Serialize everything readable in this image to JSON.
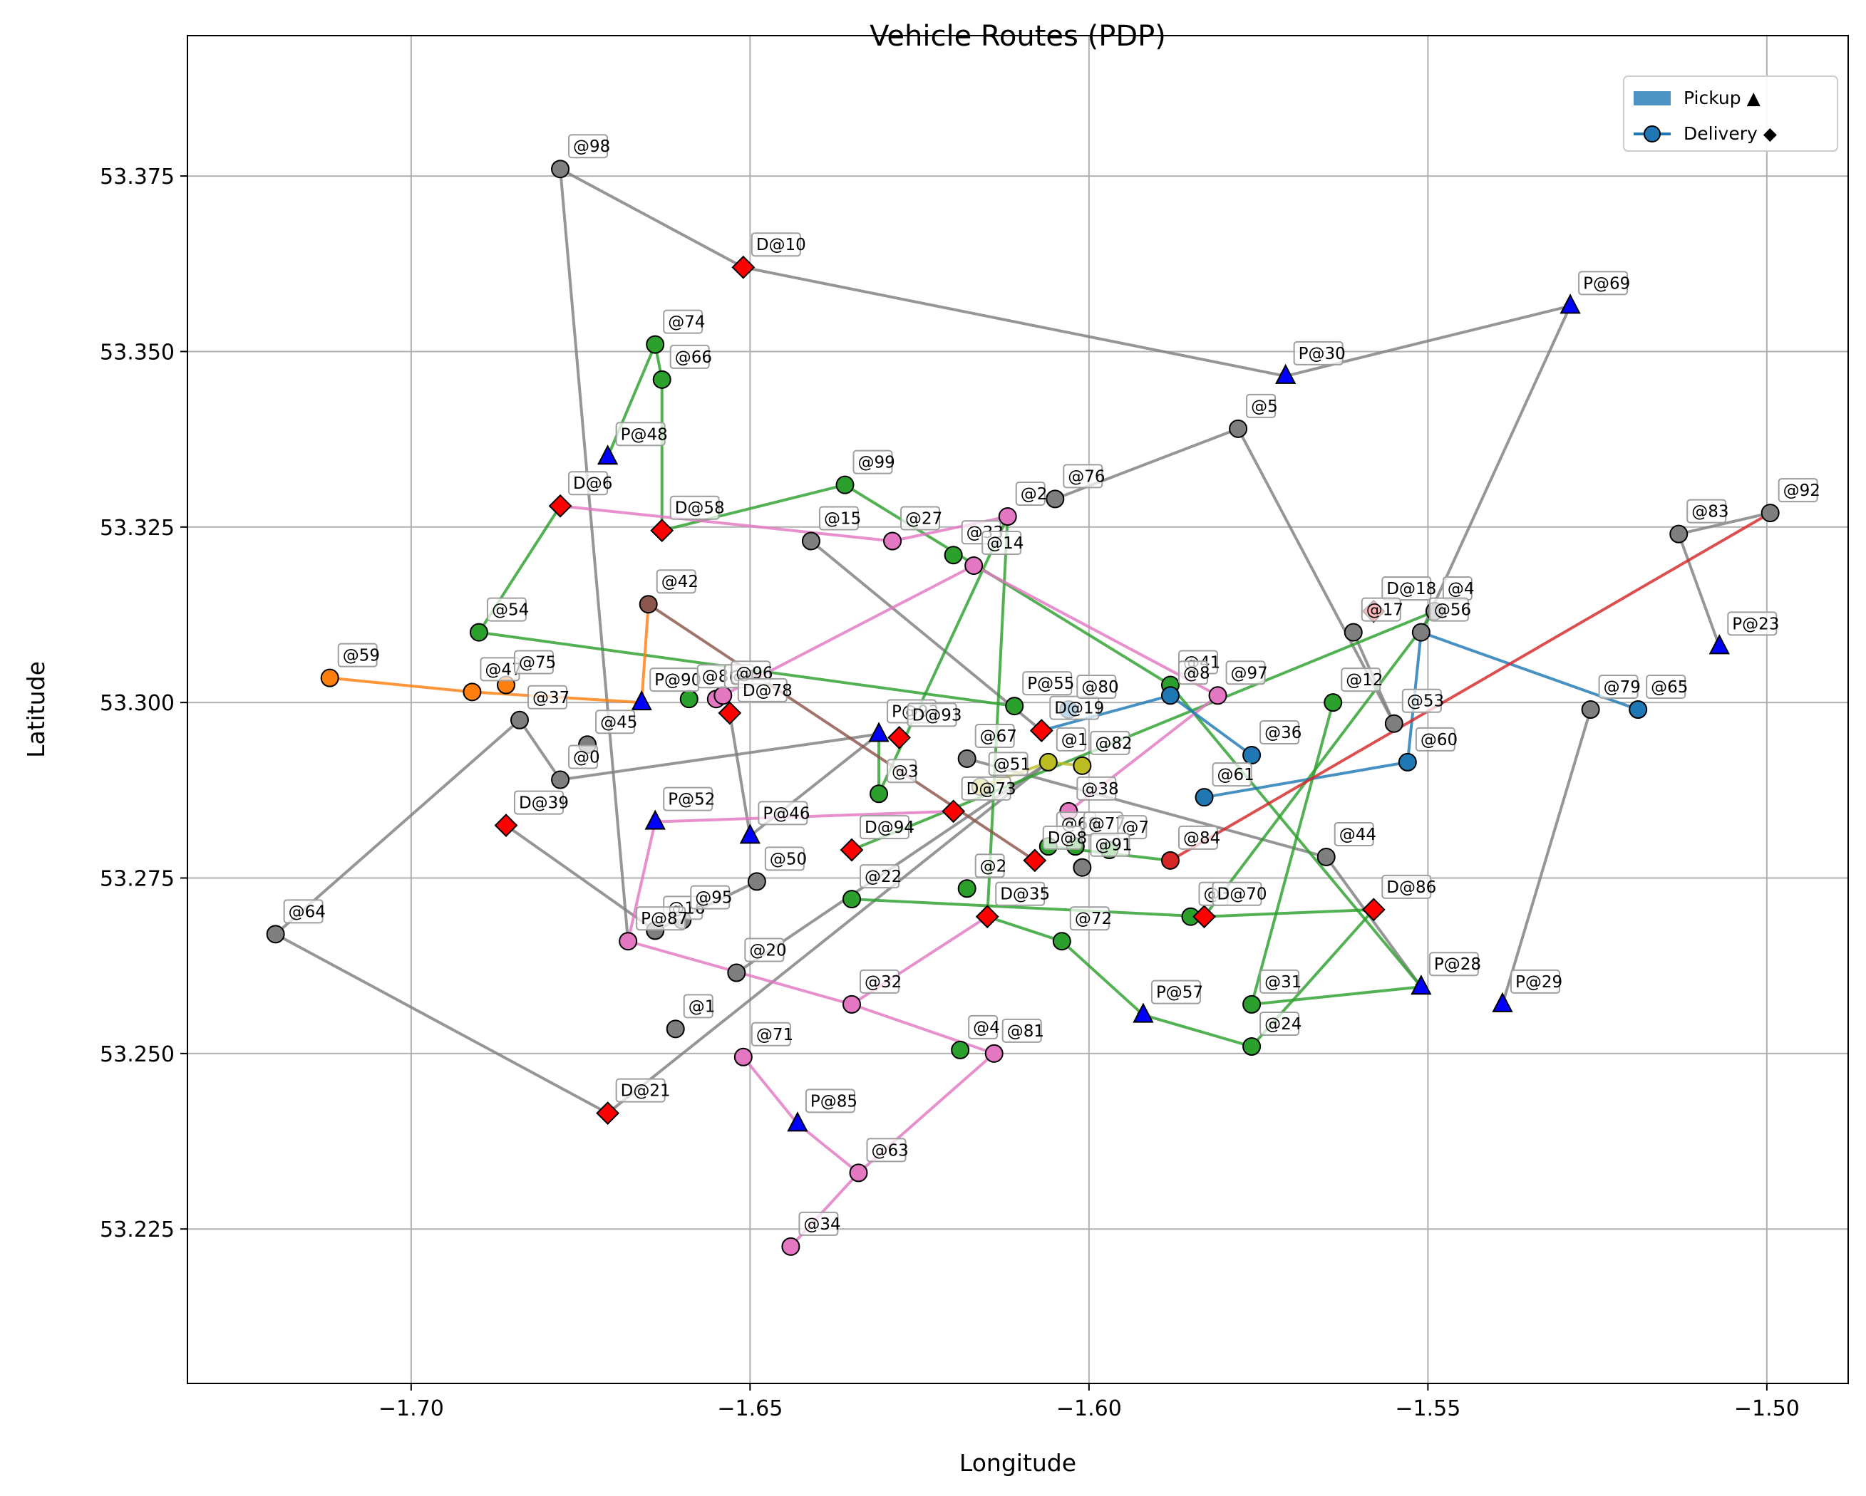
{
  "chart_data": {
    "type": "scatter",
    "title": "Vehicle Routes (PDP)",
    "xlabel": "Longitude",
    "ylabel": "Latitude",
    "xlim": [
      -1.733,
      -1.488
    ],
    "ylim": [
      53.203,
      53.395
    ],
    "xticks": [
      -1.7,
      -1.65,
      -1.6,
      -1.55,
      -1.5
    ],
    "xtick_labels": [
      "−1.70",
      "−1.65",
      "−1.60",
      "−1.55",
      "−1.50"
    ],
    "yticks": [
      53.225,
      53.25,
      53.275,
      53.3,
      53.325,
      53.35,
      53.375
    ],
    "ytick_labels": [
      "53.225",
      "53.250",
      "53.275",
      "53.300",
      "53.325",
      "53.350",
      "53.375"
    ],
    "grid": true,
    "legend": {
      "placement": "top-right",
      "entries": [
        {
          "label": "Pickup ▲",
          "kind": "patch",
          "color": "#1f77b4"
        },
        {
          "label": "Delivery ◆",
          "kind": "line-marker",
          "color": "#1f77b4"
        }
      ]
    },
    "colors": {
      "pickup": "#0000ff",
      "delivery": "#ff0000",
      "routes": {
        "gray": "#7f7f7f",
        "green": "#2ca02c",
        "pink": "#e377c2",
        "blue": "#1f77b4",
        "orange": "#ff7f0e",
        "red": "#d62728",
        "brown": "#8c564b",
        "olive": "#bcbd22"
      }
    },
    "points": [
      {
        "label": "@98",
        "x": -1.678,
        "y": 53.376,
        "type": "stop",
        "color": "gray"
      },
      {
        "label": "D@10",
        "x": -1.651,
        "y": 53.362,
        "type": "delivery"
      },
      {
        "label": "P@30",
        "x": -1.571,
        "y": 53.3465,
        "type": "pickup"
      },
      {
        "label": "P@69",
        "x": -1.529,
        "y": 53.3565,
        "type": "pickup"
      },
      {
        "label": "@5",
        "x": -1.578,
        "y": 53.339,
        "type": "stop",
        "color": "gray"
      },
      {
        "label": "@76",
        "x": -1.605,
        "y": 53.329,
        "type": "stop",
        "color": "gray"
      },
      {
        "label": "@2",
        "x": -1.612,
        "y": 53.3265,
        "type": "stop",
        "color": "pink"
      },
      {
        "label": "@74",
        "x": -1.664,
        "y": 53.351,
        "type": "stop",
        "color": "green"
      },
      {
        "label": "@66",
        "x": -1.663,
        "y": 53.346,
        "type": "stop",
        "color": "green"
      },
      {
        "label": "P@48",
        "x": -1.671,
        "y": 53.335,
        "type": "pickup"
      },
      {
        "label": "D@6",
        "x": -1.678,
        "y": 53.328,
        "type": "delivery"
      },
      {
        "label": "D@58",
        "x": -1.663,
        "y": 53.3245,
        "type": "delivery"
      },
      {
        "label": "@99",
        "x": -1.636,
        "y": 53.331,
        "type": "stop",
        "color": "green"
      },
      {
        "label": "@15",
        "x": -1.641,
        "y": 53.323,
        "type": "stop",
        "color": "gray"
      },
      {
        "label": "@27",
        "x": -1.629,
        "y": 53.323,
        "type": "stop",
        "color": "pink"
      },
      {
        "label": "@33",
        "x": -1.62,
        "y": 53.321,
        "type": "stop",
        "color": "green"
      },
      {
        "label": "@14",
        "x": -1.617,
        "y": 53.3195,
        "type": "stop",
        "color": "pink"
      },
      {
        "label": "@92",
        "x": -1.4995,
        "y": 53.327,
        "type": "stop",
        "color": "gray"
      },
      {
        "label": "@83",
        "x": -1.513,
        "y": 53.324,
        "type": "stop",
        "color": "gray"
      },
      {
        "label": "P@23",
        "x": -1.507,
        "y": 53.308,
        "type": "pickup"
      },
      {
        "label": "@79",
        "x": -1.526,
        "y": 53.299,
        "type": "stop",
        "color": "gray"
      },
      {
        "label": "@65",
        "x": -1.519,
        "y": 53.299,
        "type": "stop",
        "color": "blue"
      },
      {
        "label": "P@29",
        "x": -1.539,
        "y": 53.257,
        "type": "pickup"
      },
      {
        "label": "D@18",
        "x": -1.558,
        "y": 53.313,
        "type": "delivery"
      },
      {
        "label": "@4",
        "x": -1.549,
        "y": 53.313,
        "type": "stop",
        "color": "gray"
      },
      {
        "label": "@17",
        "x": -1.561,
        "y": 53.31,
        "type": "stop",
        "color": "gray"
      },
      {
        "label": "@56",
        "x": -1.551,
        "y": 53.31,
        "type": "stop",
        "color": "gray"
      },
      {
        "label": "@12",
        "x": -1.564,
        "y": 53.3,
        "type": "stop",
        "color": "green"
      },
      {
        "label": "@53",
        "x": -1.555,
        "y": 53.297,
        "type": "stop",
        "color": "gray"
      },
      {
        "label": "@60",
        "x": -1.553,
        "y": 53.2915,
        "type": "stop",
        "color": "blue"
      },
      {
        "label": "@54",
        "x": -1.69,
        "y": 53.31,
        "type": "stop",
        "color": "green"
      },
      {
        "label": "@42",
        "x": -1.665,
        "y": 53.314,
        "type": "stop",
        "color": "brown"
      },
      {
        "label": "@59",
        "x": -1.712,
        "y": 53.3035,
        "type": "stop",
        "color": "orange"
      },
      {
        "label": "@47",
        "x": -1.691,
        "y": 53.3015,
        "type": "stop",
        "color": "orange"
      },
      {
        "label": "@75",
        "x": -1.686,
        "y": 53.3025,
        "type": "stop",
        "color": "orange"
      },
      {
        "label": "@37",
        "x": -1.684,
        "y": 53.2975,
        "type": "stop",
        "color": "gray"
      },
      {
        "label": "@45",
        "x": -1.674,
        "y": 53.294,
        "type": "stop",
        "color": "gray"
      },
      {
        "label": "@0",
        "x": -1.678,
        "y": 53.289,
        "type": "stop",
        "color": "gray"
      },
      {
        "label": "P@90",
        "x": -1.666,
        "y": 53.3,
        "type": "pickup"
      },
      {
        "label": "@89",
        "x": -1.659,
        "y": 53.3005,
        "type": "stop",
        "color": "green"
      },
      {
        "label": "@4",
        "x": -1.655,
        "y": 53.3005,
        "type": "stop",
        "color": "pink"
      },
      {
        "label": "@96",
        "x": -1.654,
        "y": 53.301,
        "type": "stop",
        "color": "pink"
      },
      {
        "label": "D@78",
        "x": -1.653,
        "y": 53.2985,
        "type": "delivery"
      },
      {
        "label": "P@55",
        "x": -1.611,
        "y": 53.2995,
        "type": "stop",
        "color": "green"
      },
      {
        "label": "D@19",
        "x": -1.607,
        "y": 53.296,
        "type": "delivery"
      },
      {
        "label": "@80",
        "x": -1.603,
        "y": 53.299,
        "type": "stop",
        "color": "blue"
      },
      {
        "label": "@41",
        "x": -1.588,
        "y": 53.3025,
        "type": "stop",
        "color": "green"
      },
      {
        "label": "@8",
        "x": -1.588,
        "y": 53.301,
        "type": "stop",
        "color": "blue"
      },
      {
        "label": "@97",
        "x": -1.581,
        "y": 53.301,
        "type": "stop",
        "color": "pink"
      },
      {
        "label": "@36",
        "x": -1.576,
        "y": 53.2925,
        "type": "stop",
        "color": "blue"
      },
      {
        "label": "@61",
        "x": -1.583,
        "y": 53.2865,
        "type": "stop",
        "color": "blue"
      },
      {
        "label": "P@93",
        "x": -1.631,
        "y": 53.2955,
        "type": "pickup"
      },
      {
        "label": "D@93",
        "x": -1.628,
        "y": 53.295,
        "type": "delivery"
      },
      {
        "label": "@67",
        "x": -1.618,
        "y": 53.292,
        "type": "stop",
        "color": "gray"
      },
      {
        "label": "@1",
        "x": -1.606,
        "y": 53.2915,
        "type": "stop",
        "color": "olive"
      },
      {
        "label": "@82",
        "x": -1.601,
        "y": 53.291,
        "type": "stop",
        "color": "olive"
      },
      {
        "label": "@51",
        "x": -1.616,
        "y": 53.288,
        "type": "stop",
        "color": "olive"
      },
      {
        "label": "@3",
        "x": -1.631,
        "y": 53.287,
        "type": "stop",
        "color": "green"
      },
      {
        "label": "D@73",
        "x": -1.62,
        "y": 53.2845,
        "type": "delivery"
      },
      {
        "label": "@38",
        "x": -1.603,
        "y": 53.2845,
        "type": "stop",
        "color": "pink"
      },
      {
        "label": "P@52",
        "x": -1.664,
        "y": 53.283,
        "type": "pickup"
      },
      {
        "label": "P@46",
        "x": -1.65,
        "y": 53.281,
        "type": "pickup"
      },
      {
        "label": "D@39",
        "x": -1.686,
        "y": 53.2825,
        "type": "delivery"
      },
      {
        "label": "D@94",
        "x": -1.635,
        "y": 53.279,
        "type": "delivery"
      },
      {
        "label": "@68",
        "x": -1.606,
        "y": 53.2795,
        "type": "stop",
        "color": "green"
      },
      {
        "label": "@77",
        "x": -1.602,
        "y": 53.2795,
        "type": "stop",
        "color": "green"
      },
      {
        "label": "@7",
        "x": -1.597,
        "y": 53.279,
        "type": "stop",
        "color": "green"
      },
      {
        "label": "@84",
        "x": -1.588,
        "y": 53.2775,
        "type": "stop",
        "color": "red"
      },
      {
        "label": "@44",
        "x": -1.565,
        "y": 53.278,
        "type": "stop",
        "color": "gray"
      },
      {
        "label": "@22",
        "x": -1.635,
        "y": 53.272,
        "type": "stop",
        "color": "green"
      },
      {
        "label": "@2",
        "x": -1.618,
        "y": 53.2735,
        "type": "stop",
        "color": "green"
      },
      {
        "label": "D@8",
        "x": -1.608,
        "y": 53.2775,
        "type": "delivery"
      },
      {
        "label": "@91",
        "x": -1.601,
        "y": 53.2765,
        "type": "stop",
        "color": "gray"
      },
      {
        "label": "D@35",
        "x": -1.615,
        "y": 53.2695,
        "type": "delivery"
      },
      {
        "label": "@72",
        "x": -1.604,
        "y": 53.266,
        "type": "stop",
        "color": "green"
      },
      {
        "label": "@3",
        "x": -1.585,
        "y": 53.2695,
        "type": "stop",
        "color": "green"
      },
      {
        "label": "D@70",
        "x": -1.583,
        "y": 53.2695,
        "type": "delivery"
      },
      {
        "label": "D@86",
        "x": -1.558,
        "y": 53.2705,
        "type": "delivery"
      },
      {
        "label": "P@28",
        "x": -1.551,
        "y": 53.2595,
        "type": "pickup"
      },
      {
        "label": "@31",
        "x": -1.576,
        "y": 53.257,
        "type": "stop",
        "color": "green"
      },
      {
        "label": "@24",
        "x": -1.576,
        "y": 53.251,
        "type": "stop",
        "color": "green"
      },
      {
        "label": "P@57",
        "x": -1.592,
        "y": 53.2555,
        "type": "pickup"
      },
      {
        "label": "@50",
        "x": -1.649,
        "y": 53.2745,
        "type": "stop",
        "color": "gray"
      },
      {
        "label": "@16",
        "x": -1.664,
        "y": 53.2675,
        "type": "stop",
        "color": "gray"
      },
      {
        "label": "@95",
        "x": -1.66,
        "y": 53.269,
        "type": "stop",
        "color": "gray"
      },
      {
        "label": "P@87",
        "x": -1.668,
        "y": 53.266,
        "type": "stop",
        "color": "pink"
      },
      {
        "label": "@64",
        "x": -1.72,
        "y": 53.267,
        "type": "stop",
        "color": "gray"
      },
      {
        "label": "@20",
        "x": -1.652,
        "y": 53.2615,
        "type": "stop",
        "color": "gray"
      },
      {
        "label": "@32",
        "x": -1.635,
        "y": 53.257,
        "type": "stop",
        "color": "pink"
      },
      {
        "label": "@1",
        "x": -1.661,
        "y": 53.2535,
        "type": "stop",
        "color": "gray"
      },
      {
        "label": "@71",
        "x": -1.651,
        "y": 53.2495,
        "type": "stop",
        "color": "pink"
      },
      {
        "label": "@4",
        "x": -1.619,
        "y": 53.2505,
        "type": "stop",
        "color": "green"
      },
      {
        "label": "@81",
        "x": -1.614,
        "y": 53.25,
        "type": "stop",
        "color": "pink"
      },
      {
        "label": "D@21",
        "x": -1.671,
        "y": 53.2415,
        "type": "delivery"
      },
      {
        "label": "P@85",
        "x": -1.643,
        "y": 53.24,
        "type": "pickup"
      },
      {
        "label": "@63",
        "x": -1.634,
        "y": 53.233,
        "type": "stop",
        "color": "pink"
      },
      {
        "label": "@34",
        "x": -1.644,
        "y": 53.2225,
        "type": "stop",
        "color": "pink"
      }
    ]
  }
}
